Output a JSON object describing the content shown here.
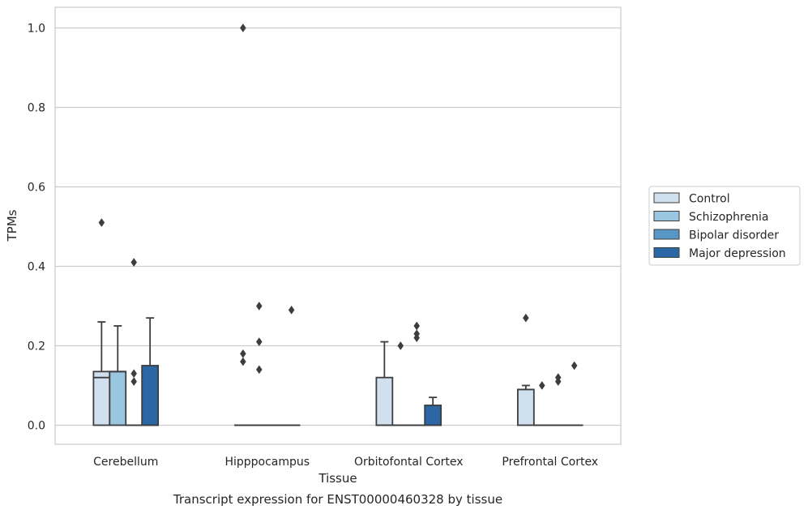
{
  "chart_data": {
    "type": "box",
    "title": "Transcript expression for ENST00000460328 by tissue",
    "xlabel": "Tissue",
    "ylabel": "TPMs",
    "ylim": [
      -0.048,
      1.052
    ],
    "yticks": [
      "0.0",
      "0.2",
      "0.4",
      "0.6",
      "0.8",
      "1.0"
    ],
    "grid": "horizontal",
    "legend_position": "right",
    "categories": [
      "Cerebellum",
      "Hipppocampus",
      "Orbitofontal Cortex",
      "Prefrontal Cortex"
    ],
    "series": [
      {
        "name": "Control",
        "color": "#d0e0ef",
        "boxes": [
          {
            "q1": 0.0,
            "median": 0.12,
            "q3": 0.135,
            "whisker_low": 0.0,
            "whisker_high": 0.26,
            "outliers": [
              0.51
            ]
          },
          {
            "q1": 0.0,
            "median": 0.0,
            "q3": 0.0,
            "whisker_low": 0.0,
            "whisker_high": 0.0,
            "outliers": [
              1.0,
              0.18,
              0.16
            ]
          },
          {
            "q1": 0.0,
            "median": 0.0,
            "q3": 0.12,
            "whisker_low": 0.0,
            "whisker_high": 0.21,
            "outliers": []
          },
          {
            "q1": 0.0,
            "median": 0.09,
            "q3": 0.09,
            "whisker_low": 0.0,
            "whisker_high": 0.1,
            "outliers": [
              0.27
            ]
          }
        ]
      },
      {
        "name": "Schizophrenia",
        "color": "#9ac6df",
        "boxes": [
          {
            "q1": 0.0,
            "median": 0.135,
            "q3": 0.135,
            "whisker_low": 0.0,
            "whisker_high": 0.25,
            "outliers": []
          },
          {
            "q1": 0.0,
            "median": 0.0,
            "q3": 0.0,
            "whisker_low": 0.0,
            "whisker_high": 0.0,
            "outliers": [
              0.3,
              0.21,
              0.14
            ]
          },
          {
            "q1": 0.0,
            "median": 0.0,
            "q3": 0.0,
            "whisker_low": 0.0,
            "whisker_high": 0.0,
            "outliers": [
              0.2
            ]
          },
          {
            "q1": 0.0,
            "median": 0.0,
            "q3": 0.0,
            "whisker_low": 0.0,
            "whisker_high": 0.0,
            "outliers": [
              0.1
            ]
          }
        ]
      },
      {
        "name": "Bipolar disorder",
        "color": "#5896c6",
        "boxes": [
          {
            "q1": 0.0,
            "median": 0.0,
            "q3": 0.0,
            "whisker_low": 0.0,
            "whisker_high": 0.0,
            "outliers": [
              0.41,
              0.13,
              0.11
            ]
          },
          {
            "q1": 0.0,
            "median": 0.0,
            "q3": 0.0,
            "whisker_low": 0.0,
            "whisker_high": 0.0,
            "outliers": []
          },
          {
            "q1": 0.0,
            "median": 0.0,
            "q3": 0.0,
            "whisker_low": 0.0,
            "whisker_high": 0.0,
            "outliers": [
              0.25,
              0.23,
              0.22
            ]
          },
          {
            "q1": 0.0,
            "median": 0.0,
            "q3": 0.0,
            "whisker_low": 0.0,
            "whisker_high": 0.0,
            "outliers": [
              0.12,
              0.11
            ]
          }
        ]
      },
      {
        "name": "Major depression",
        "color": "#2a67a4",
        "boxes": [
          {
            "q1": 0.0,
            "median": 0.0,
            "q3": 0.15,
            "whisker_low": 0.0,
            "whisker_high": 0.27,
            "outliers": []
          },
          {
            "q1": 0.0,
            "median": 0.0,
            "q3": 0.0,
            "whisker_low": 0.0,
            "whisker_high": 0.0,
            "outliers": [
              0.29
            ]
          },
          {
            "q1": 0.0,
            "median": 0.0,
            "q3": 0.05,
            "whisker_low": 0.0,
            "whisker_high": 0.07,
            "outliers": []
          },
          {
            "q1": 0.0,
            "median": 0.0,
            "q3": 0.0,
            "whisker_low": 0.0,
            "whisker_high": 0.0,
            "outliers": [
              0.15
            ]
          }
        ]
      }
    ]
  }
}
